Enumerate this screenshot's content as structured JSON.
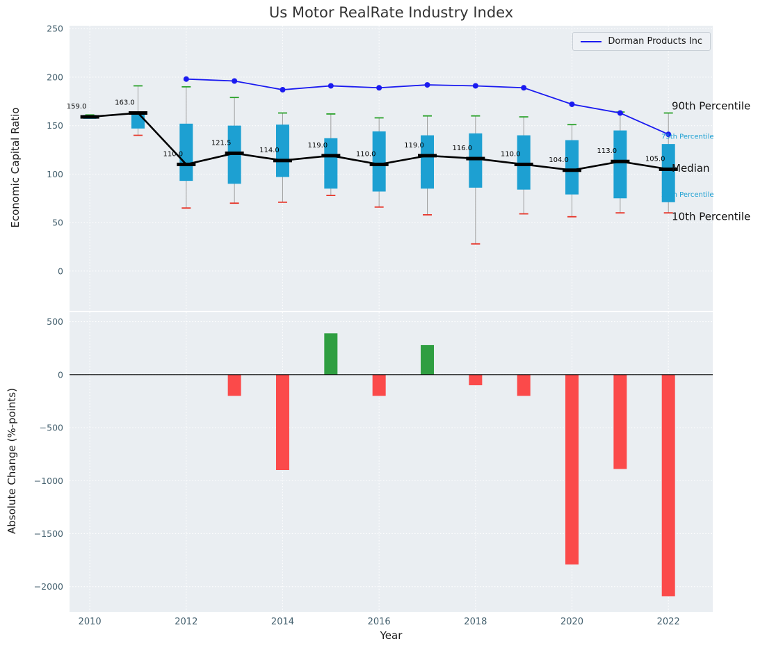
{
  "colors": {
    "panel_bg": "#eaeef2",
    "grid": "#ffffff",
    "box": "#1da0d2",
    "median": "#000000",
    "whisker": "#9e9e9e",
    "cap_top": "#2aa22a",
    "cap_bottom": "#e73428",
    "company_line": "#1a1af0",
    "bar_positive": "#2f9e41",
    "bar_negative": "#fb4a4a",
    "tick_label": "#44606e",
    "annotation_small": "#1da0d2",
    "zero_line": "#000000"
  },
  "chart_data": [
    {
      "type": "box-line",
      "title": "Us Motor RealRate Industry Index",
      "ylabel": "Economic Capital Ratio",
      "ylim": [
        -41,
        253
      ],
      "yticks": [
        0,
        50,
        100,
        150,
        200,
        250
      ],
      "xlim": [
        2009.58,
        2022.92
      ],
      "xticks": [
        2010,
        2012,
        2014,
        2016,
        2018,
        2020,
        2022
      ],
      "years": [
        2010,
        2011,
        2012,
        2013,
        2014,
        2015,
        2016,
        2017,
        2018,
        2019,
        2020,
        2021,
        2022
      ],
      "median": [
        159,
        163,
        110,
        121.5,
        114,
        119,
        110,
        119,
        116,
        110,
        104,
        113,
        105
      ],
      "median_labels": [
        "159.0",
        "163.0",
        "110.0",
        "121.5",
        "114.0",
        "119.0",
        "110.0",
        "119.0",
        "116.0",
        "110.0",
        "104.0",
        "113.0",
        "105.0"
      ],
      "q1": [
        157,
        147,
        93,
        90,
        97,
        85,
        82,
        85,
        86,
        84,
        79,
        75,
        71
      ],
      "q3": [
        161,
        164,
        152,
        150,
        151,
        137,
        144,
        140,
        142,
        140,
        135,
        145,
        131
      ],
      "p10": [
        158,
        140,
        65,
        70,
        71,
        78,
        66,
        58,
        28,
        59,
        56,
        60,
        60
      ],
      "p90": [
        161,
        191,
        190,
        179,
        163,
        162,
        158,
        160,
        160,
        159,
        151,
        164,
        163
      ],
      "company": {
        "name": "Dorman Products Inc",
        "years": [
          2012,
          2013,
          2014,
          2015,
          2016,
          2017,
          2018,
          2019,
          2020,
          2021,
          2022
        ],
        "values": [
          198,
          196,
          187,
          191,
          189,
          192,
          191,
          189,
          172,
          163,
          141
        ]
      },
      "annotations": [
        {
          "label": "90th Percentile",
          "value": 170,
          "size": "large"
        },
        {
          "label": "75th Percentile",
          "value": 139,
          "size": "small"
        },
        {
          "label": "Median",
          "value": 106,
          "size": "large"
        },
        {
          "label": "25th Percentile",
          "value": 79,
          "size": "small"
        },
        {
          "label": "10th Percentile",
          "value": 56,
          "size": "large"
        }
      ],
      "legend_position": "upper right",
      "grid": true
    },
    {
      "type": "bar",
      "ylabel": "Absolute Change (%-points)",
      "xlabel": "Year",
      "ylim": [
        -2238,
        589
      ],
      "yticks": [
        500,
        0,
        -500,
        -1000,
        -1500,
        -2000
      ],
      "xlim": [
        2009.58,
        2022.92
      ],
      "xticks": [
        2010,
        2012,
        2014,
        2016,
        2018,
        2020,
        2022
      ],
      "years": [
        2010,
        2011,
        2012,
        2013,
        2014,
        2015,
        2016,
        2017,
        2018,
        2019,
        2020,
        2021,
        2022
      ],
      "values": [
        0,
        0,
        0,
        -200,
        -900,
        390,
        -200,
        280,
        -100,
        -200,
        -1790,
        -890,
        -2090
      ],
      "grid": true
    }
  ]
}
